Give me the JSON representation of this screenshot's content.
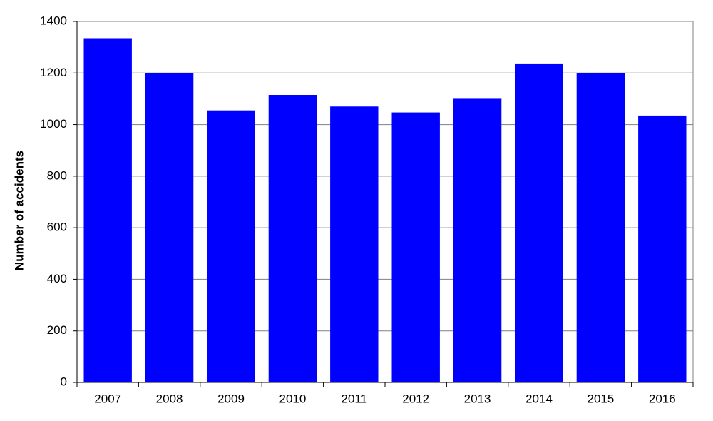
{
  "chart_data": {
    "type": "bar",
    "y_label": "Number of accidents",
    "categories": [
      "2007",
      "2008",
      "2009",
      "2010",
      "2011",
      "2012",
      "2013",
      "2014",
      "2015",
      "2016"
    ],
    "values": [
      1335,
      1200,
      1055,
      1115,
      1070,
      1047,
      1100,
      1237,
      1200,
      1035
    ],
    "color": "#0000ff",
    "ylim": [
      0,
      1400
    ],
    "yticks": [
      0,
      200,
      400,
      600,
      800,
      1000,
      1200,
      1400
    ],
    "grid": true
  }
}
